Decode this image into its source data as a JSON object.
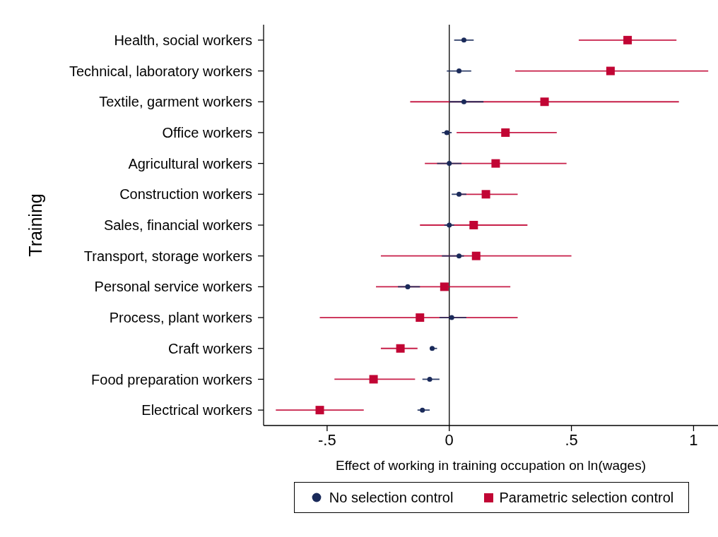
{
  "chart_data": {
    "type": "scatter",
    "orientation": "horizontal",
    "xlabel": "Effect of working in training occupation on ln(wages)",
    "ylabel": "Training",
    "categories": [
      "Health, social workers",
      "Technical, laboratory workers",
      "Textile, garment workers",
      "Office workers",
      "Agricultural workers",
      "Construction workers",
      "Sales, financial workers",
      "Transport, storage workers",
      "Personal service workers",
      "Process, plant workers",
      "Craft workers",
      "Food preparation workers",
      "Electrical workers"
    ],
    "xlim": [
      -0.76,
      1.1
    ],
    "xticks": [
      {
        "value": -0.5,
        "label": "-.5"
      },
      0,
      {
        "value": 0.5,
        "label": ".5"
      },
      1
    ],
    "series": [
      {
        "name": "No selection control",
        "color": "#1a2a5a",
        "marker": "circle",
        "values": [
          0.06,
          0.04,
          0.06,
          -0.01,
          0,
          0.04,
          0,
          0.04,
          -0.17,
          0.01,
          -0.07,
          -0.08,
          -0.11
        ],
        "errors": [
          [
            0.02,
            0.1
          ],
          [
            -0.01,
            0.09
          ],
          [
            0,
            0.14
          ],
          [
            -0.03,
            0.01
          ],
          [
            -0.05,
            0.05
          ],
          [
            0.01,
            0.07
          ],
          [
            -0.02,
            0.02
          ],
          [
            -0.03,
            0.06
          ],
          [
            -0.21,
            -0.12
          ],
          [
            -0.04,
            0.07
          ],
          [
            -0.08,
            -0.05
          ],
          [
            -0.11,
            -0.04
          ],
          [
            -0.13,
            -0.08
          ]
        ]
      },
      {
        "name": "Parametric selection control",
        "color": "#c10534",
        "marker": "square",
        "values": [
          0.73,
          0.66,
          0.39,
          0.23,
          0.19,
          0.15,
          0.1,
          0.11,
          -0.02,
          -0.12,
          -0.2,
          -0.31,
          -0.53
        ],
        "errors": [
          [
            0.53,
            0.93
          ],
          [
            0.27,
            1.06
          ],
          [
            -0.16,
            0.94
          ],
          [
            0.03,
            0.44
          ],
          [
            -0.1,
            0.48
          ],
          [
            0.04,
            0.28
          ],
          [
            -0.12,
            0.32
          ],
          [
            -0.28,
            0.5
          ],
          [
            -0.3,
            0.25
          ],
          [
            -0.53,
            0.28
          ],
          [
            -0.28,
            -0.13
          ],
          [
            -0.47,
            -0.14
          ],
          [
            -0.71,
            -0.35
          ]
        ]
      }
    ],
    "ref_lines": [
      {
        "axis": "x",
        "value": 0,
        "color": "#000000"
      }
    ],
    "legend": "bottom"
  }
}
